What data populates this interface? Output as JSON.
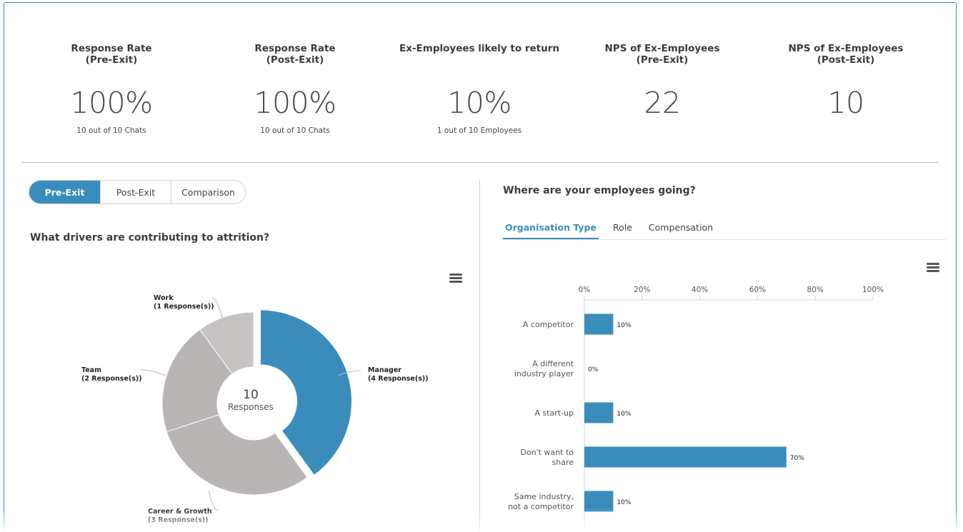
{
  "kpis": [
    {
      "title": "Response Rate\n(Pre-Exit)",
      "value": "100%",
      "sub": "10 out of 10 Chats"
    },
    {
      "title": "Response Rate\n(Post-Exit)",
      "value": "100%",
      "sub": "10 out of 10 Chats"
    },
    {
      "title": "Ex-Employees likely to return",
      "value": "10%",
      "sub": "1 out of 10 Employees"
    },
    {
      "title": "NPS of Ex-Employees\n(Pre-Exit)",
      "value": "22",
      "sub": ""
    },
    {
      "title": "NPS of Ex-Employees\n(Post-Exit)",
      "value": "10",
      "sub": ""
    }
  ],
  "toggle": {
    "options": [
      "Pre-Exit",
      "Post-Exit",
      "Comparison"
    ],
    "selected": "Pre-Exit"
  },
  "left": {
    "title": "What drivers are contributing to attrition?"
  },
  "right": {
    "title": "Where are your employees going?",
    "tabs": [
      "Organisation Type",
      "Role",
      "Compensation"
    ],
    "active_tab": "Organisation Type"
  },
  "colors": {
    "accent": "#3a8dbb",
    "slice_gray_1": "#b8b5b4",
    "slice_gray_2": "#c6c2c1",
    "border": "#3a8dbb"
  },
  "icons": {
    "chart_menu": "hamburger-menu-icon"
  },
  "chart_data": [
    {
      "type": "pie",
      "variant": "donut",
      "center_value": "10",
      "center_label": "Responses",
      "slices": [
        {
          "name": "Manager",
          "label": "(4 Response(s))",
          "value": 4,
          "color": "#3a8dbb",
          "selected": true
        },
        {
          "name": "Career & Growth",
          "label": "(3 Response(s))",
          "value": 3,
          "color": "#b8b5b4"
        },
        {
          "name": "Team",
          "label": "(2 Response(s))",
          "value": 2,
          "color": "#b8b5b4"
        },
        {
          "name": "Work",
          "label": "(1 Response(s))",
          "value": 1,
          "color": "#c6c2c1"
        }
      ]
    },
    {
      "type": "bar",
      "orientation": "horizontal",
      "categories": [
        "A competitor",
        "A different\nindustry player",
        "A start-up",
        "Don't want to\nshare",
        "Same industry,\nnot a competitor"
      ],
      "values": [
        10,
        0,
        10,
        70,
        10
      ],
      "value_labels": [
        "10%",
        "0%",
        "10%",
        "70%",
        "10%"
      ],
      "xlim": [
        0,
        100
      ],
      "xticks": [
        "0%",
        "20%",
        "40%",
        "60%",
        "80%",
        "100%"
      ],
      "xaxis_position": "top",
      "color": "#3a8dbb"
    }
  ]
}
